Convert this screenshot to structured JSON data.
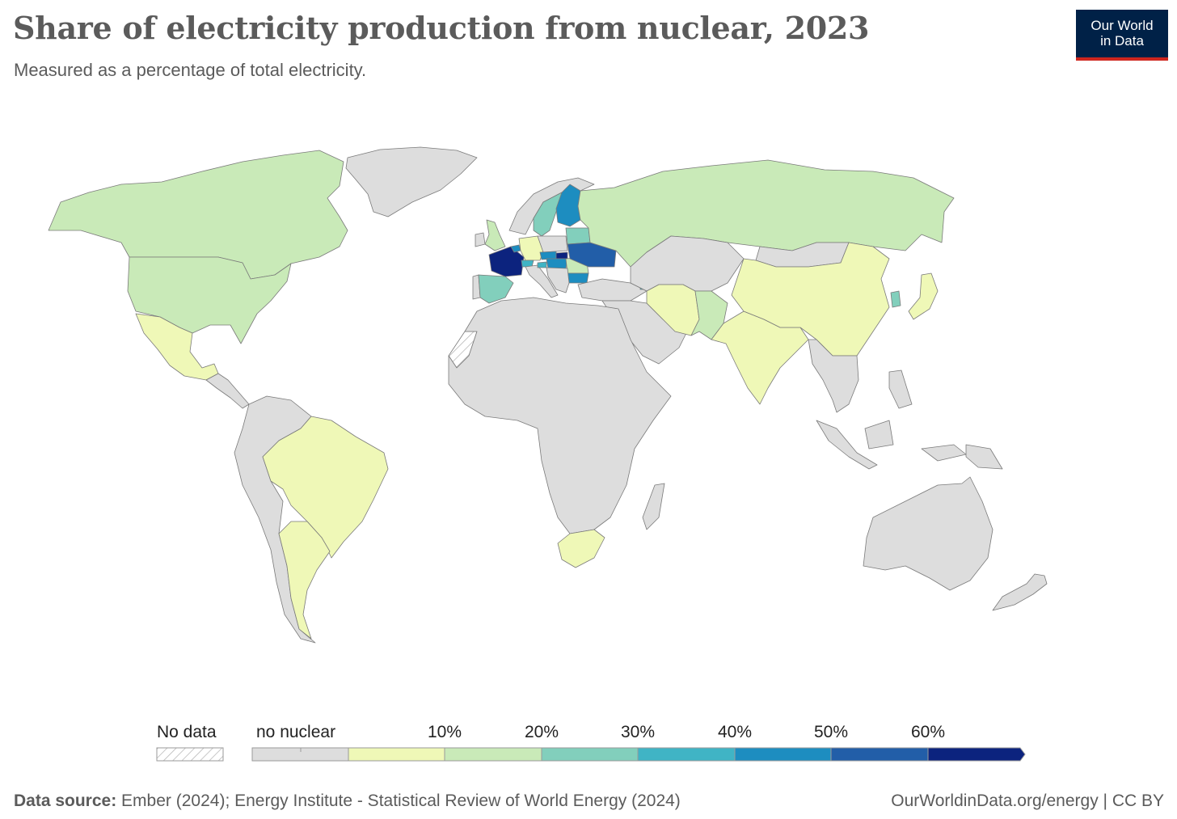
{
  "title": "Share of electricity production from nuclear, 2023",
  "subtitle": "Measured as a percentage of total electricity.",
  "logo": {
    "line1": "Our World",
    "line2": "in Data"
  },
  "colors": {
    "no_data": "#ffffff",
    "no_nuclear": "#dddddd",
    "b0_10": "#eff8b7",
    "b10_20": "#c9eab8",
    "b20_30": "#82cfbc",
    "b30_40": "#40b4c5",
    "b40_50": "#1d8dc0",
    "b50_60": "#225ea8",
    "b60_plus": "#0c237e",
    "border": "#7a7a7a"
  },
  "legend": {
    "no_data_label": "No data",
    "no_nuclear_label": "no nuclear",
    "ticks": [
      "10%",
      "20%",
      "30%",
      "40%",
      "50%",
      "60%"
    ]
  },
  "map": {
    "countries": [
      {
        "name": "Canada",
        "bin": "b10_20"
      },
      {
        "name": "United States",
        "bin": "b10_20"
      },
      {
        "name": "Mexico",
        "bin": "b0_10"
      },
      {
        "name": "Greenland",
        "bin": "no_nuclear"
      },
      {
        "name": "Brazil",
        "bin": "b0_10"
      },
      {
        "name": "Argentina",
        "bin": "b0_10"
      },
      {
        "name": "Rest of South America",
        "bin": "no_nuclear"
      },
      {
        "name": "Central America",
        "bin": "no_nuclear"
      },
      {
        "name": "Western Sahara",
        "bin": "no_data"
      },
      {
        "name": "Africa",
        "bin": "no_nuclear"
      },
      {
        "name": "South Africa",
        "bin": "b0_10"
      },
      {
        "name": "Madagascar",
        "bin": "no_nuclear"
      },
      {
        "name": "Russia",
        "bin": "b10_20"
      },
      {
        "name": "China",
        "bin": "b0_10"
      },
      {
        "name": "India",
        "bin": "b0_10"
      },
      {
        "name": "Pakistan",
        "bin": "b10_20"
      },
      {
        "name": "Iran",
        "bin": "b0_10"
      },
      {
        "name": "Middle East and Central Asia",
        "bin": "no_nuclear"
      },
      {
        "name": "Mongolia",
        "bin": "no_nuclear"
      },
      {
        "name": "Southeast Asia",
        "bin": "no_nuclear"
      },
      {
        "name": "South Korea",
        "bin": "b20_30"
      },
      {
        "name": "Japan",
        "bin": "b0_10"
      },
      {
        "name": "Australia",
        "bin": "no_nuclear"
      },
      {
        "name": "New Zealand",
        "bin": "no_nuclear"
      },
      {
        "name": "Indonesia",
        "bin": "no_nuclear"
      },
      {
        "name": "Papua New Guinea",
        "bin": "no_nuclear"
      },
      {
        "name": "Sweden",
        "bin": "b20_30"
      },
      {
        "name": "Norway",
        "bin": "no_nuclear"
      },
      {
        "name": "Finland",
        "bin": "b40_50"
      },
      {
        "name": "United Kingdom",
        "bin": "b10_20"
      },
      {
        "name": "Ireland",
        "bin": "no_nuclear"
      },
      {
        "name": "France",
        "bin": "b60_plus"
      },
      {
        "name": "Spain",
        "bin": "b20_30"
      },
      {
        "name": "Portugal",
        "bin": "no_nuclear"
      },
      {
        "name": "Germany",
        "bin": "b0_10"
      },
      {
        "name": "Belgium",
        "bin": "b40_50"
      },
      {
        "name": "Switzerland",
        "bin": "b30_40"
      },
      {
        "name": "Italy",
        "bin": "no_nuclear"
      },
      {
        "name": "Poland",
        "bin": "no_nuclear"
      },
      {
        "name": "Czechia",
        "bin": "b40_50"
      },
      {
        "name": "Slovakia",
        "bin": "b60_plus"
      },
      {
        "name": "Hungary",
        "bin": "b40_50"
      },
      {
        "name": "Slovenia",
        "bin": "b30_40"
      },
      {
        "name": "Romania",
        "bin": "b10_20"
      },
      {
        "name": "Bulgaria",
        "bin": "b40_50"
      },
      {
        "name": "Ukraine",
        "bin": "b50_60"
      },
      {
        "name": "Belarus",
        "bin": "b20_30"
      },
      {
        "name": "Balkans",
        "bin": "no_nuclear"
      },
      {
        "name": "Turkey",
        "bin": "no_nuclear"
      },
      {
        "name": "Armenia",
        "bin": "b30_40"
      }
    ]
  },
  "footer": {
    "source_label": "Data source:",
    "source_text": " Ember (2024); Energy Institute - Statistical Review of World Energy (2024)",
    "link": "OurWorldinData.org/energy | CC BY"
  }
}
